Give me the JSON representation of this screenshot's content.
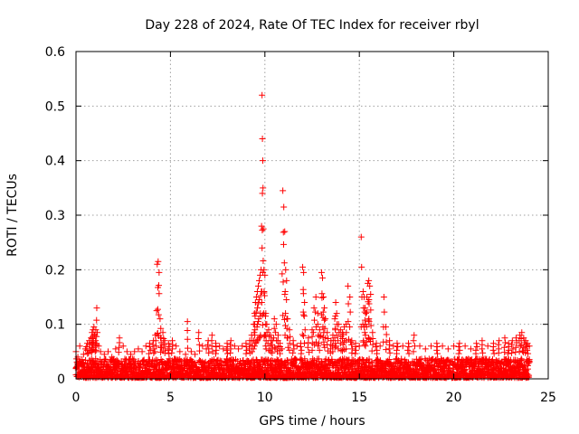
{
  "chart_data": {
    "type": "scatter",
    "title": "Day 228 of 2024, Rate Of TEC Index for receiver rbyl",
    "xlabel": "GPS time / hours",
    "ylabel": "ROTI / TECUs",
    "xlim": [
      0,
      25
    ],
    "ylim": [
      0,
      0.6
    ],
    "xticks": [
      0,
      5,
      10,
      15,
      20,
      25
    ],
    "xtick_labels": [
      "0",
      "5",
      "10",
      "15",
      "20",
      "25"
    ],
    "yticks": [
      0,
      0.1,
      0.2,
      0.3,
      0.4,
      0.5,
      0.6
    ],
    "ytick_labels": [
      "0",
      "0.1",
      "0.2",
      "0.3",
      "0.4",
      "0.5",
      "0.6"
    ],
    "grid": true,
    "marker": "+",
    "color": "#ff0000",
    "series": [
      {
        "name": "ROTI",
        "points": [
          [
            0.0,
            0.05
          ],
          [
            0.1,
            0.04
          ],
          [
            0.2,
            0.06
          ],
          [
            0.3,
            0.03
          ],
          [
            0.4,
            0.045
          ],
          [
            0.5,
            0.055
          ],
          [
            0.6,
            0.065
          ],
          [
            0.7,
            0.07
          ],
          [
            0.8,
            0.075
          ],
          [
            0.85,
            0.085
          ],
          [
            0.9,
            0.09
          ],
          [
            0.95,
            0.095
          ],
          [
            1.0,
            0.08
          ],
          [
            1.05,
            0.09
          ],
          [
            1.1,
            0.13
          ],
          [
            1.2,
            0.06
          ],
          [
            1.3,
            0.05
          ],
          [
            1.5,
            0.045
          ],
          [
            1.7,
            0.05
          ],
          [
            1.9,
            0.04
          ],
          [
            2.1,
            0.055
          ],
          [
            2.3,
            0.075
          ],
          [
            2.5,
            0.06
          ],
          [
            2.7,
            0.05
          ],
          [
            2.9,
            0.045
          ],
          [
            3.1,
            0.05
          ],
          [
            3.3,
            0.055
          ],
          [
            3.5,
            0.05
          ],
          [
            3.7,
            0.06
          ],
          [
            3.9,
            0.065
          ],
          [
            4.1,
            0.07
          ],
          [
            4.2,
            0.08
          ],
          [
            4.3,
            0.21
          ],
          [
            4.35,
            0.215
          ],
          [
            4.4,
            0.195
          ],
          [
            4.45,
            0.11
          ],
          [
            4.5,
            0.075
          ],
          [
            4.6,
            0.085
          ],
          [
            4.7,
            0.07
          ],
          [
            4.9,
            0.065
          ],
          [
            5.1,
            0.07
          ],
          [
            5.3,
            0.06
          ],
          [
            5.5,
            0.05
          ],
          [
            5.8,
            0.045
          ],
          [
            5.9,
            0.105
          ],
          [
            6.1,
            0.05
          ],
          [
            6.3,
            0.045
          ],
          [
            6.5,
            0.085
          ],
          [
            6.7,
            0.06
          ],
          [
            6.9,
            0.055
          ],
          [
            7.0,
            0.07
          ],
          [
            7.2,
            0.08
          ],
          [
            7.4,
            0.065
          ],
          [
            7.6,
            0.06
          ],
          [
            7.8,
            0.055
          ],
          [
            8.0,
            0.065
          ],
          [
            8.2,
            0.07
          ],
          [
            8.4,
            0.06
          ],
          [
            8.6,
            0.055
          ],
          [
            8.8,
            0.06
          ],
          [
            9.0,
            0.065
          ],
          [
            9.2,
            0.07
          ],
          [
            9.3,
            0.08
          ],
          [
            9.4,
            0.1
          ],
          [
            9.45,
            0.12
          ],
          [
            9.5,
            0.14
          ],
          [
            9.55,
            0.15
          ],
          [
            9.6,
            0.16
          ],
          [
            9.65,
            0.17
          ],
          [
            9.7,
            0.18
          ],
          [
            9.75,
            0.19
          ],
          [
            9.8,
            0.2
          ],
          [
            9.85,
            0.52
          ],
          [
            9.87,
            0.44
          ],
          [
            9.9,
            0.35
          ],
          [
            9.92,
            0.275
          ],
          [
            9.95,
            0.2
          ],
          [
            10.0,
            0.19
          ],
          [
            10.05,
            0.12
          ],
          [
            10.1,
            0.1
          ],
          [
            10.2,
            0.09
          ],
          [
            10.3,
            0.08
          ],
          [
            10.4,
            0.07
          ],
          [
            10.5,
            0.11
          ],
          [
            10.6,
            0.1
          ],
          [
            10.7,
            0.08
          ],
          [
            10.8,
            0.065
          ],
          [
            10.9,
            0.055
          ],
          [
            10.95,
            0.345
          ],
          [
            11.0,
            0.315
          ],
          [
            11.05,
            0.27
          ],
          [
            11.1,
            0.2
          ],
          [
            11.15,
            0.18
          ],
          [
            11.2,
            0.11
          ],
          [
            11.3,
            0.09
          ],
          [
            11.5,
            0.07
          ],
          [
            11.7,
            0.06
          ],
          [
            11.9,
            0.065
          ],
          [
            12.0,
            0.205
          ],
          [
            12.05,
            0.195
          ],
          [
            12.1,
            0.14
          ],
          [
            12.3,
            0.075
          ],
          [
            12.5,
            0.09
          ],
          [
            12.6,
            0.13
          ],
          [
            12.7,
            0.15
          ],
          [
            12.8,
            0.12
          ],
          [
            12.9,
            0.09
          ],
          [
            13.0,
            0.195
          ],
          [
            13.05,
            0.185
          ],
          [
            13.1,
            0.15
          ],
          [
            13.15,
            0.13
          ],
          [
            13.2,
            0.11
          ],
          [
            13.3,
            0.085
          ],
          [
            13.5,
            0.07
          ],
          [
            13.6,
            0.08
          ],
          [
            13.7,
            0.11
          ],
          [
            13.75,
            0.14
          ],
          [
            13.8,
            0.12
          ],
          [
            13.9,
            0.1
          ],
          [
            14.0,
            0.09
          ],
          [
            14.1,
            0.085
          ],
          [
            14.2,
            0.095
          ],
          [
            14.3,
            0.1
          ],
          [
            14.4,
            0.17
          ],
          [
            14.5,
            0.15
          ],
          [
            14.6,
            0.07
          ],
          [
            14.8,
            0.065
          ],
          [
            15.0,
            0.06
          ],
          [
            15.1,
            0.26
          ],
          [
            15.2,
            0.16
          ],
          [
            15.25,
            0.15
          ],
          [
            15.3,
            0.13
          ],
          [
            15.35,
            0.12
          ],
          [
            15.4,
            0.15
          ],
          [
            15.45,
            0.175
          ],
          [
            15.5,
            0.18
          ],
          [
            15.55,
            0.17
          ],
          [
            15.6,
            0.155
          ],
          [
            15.7,
            0.085
          ],
          [
            15.9,
            0.065
          ],
          [
            16.1,
            0.06
          ],
          [
            16.3,
            0.15
          ],
          [
            16.4,
            0.095
          ],
          [
            16.6,
            0.07
          ],
          [
            16.8,
            0.06
          ],
          [
            17.0,
            0.065
          ],
          [
            17.3,
            0.06
          ],
          [
            17.6,
            0.065
          ],
          [
            17.9,
            0.08
          ],
          [
            18.2,
            0.06
          ],
          [
            18.5,
            0.055
          ],
          [
            18.8,
            0.06
          ],
          [
            19.1,
            0.065
          ],
          [
            19.4,
            0.06
          ],
          [
            19.7,
            0.055
          ],
          [
            20.0,
            0.06
          ],
          [
            20.3,
            0.065
          ],
          [
            20.6,
            0.06
          ],
          [
            20.9,
            0.055
          ],
          [
            21.2,
            0.065
          ],
          [
            21.5,
            0.07
          ],
          [
            21.8,
            0.06
          ],
          [
            22.1,
            0.065
          ],
          [
            22.4,
            0.07
          ],
          [
            22.7,
            0.075
          ],
          [
            22.9,
            0.065
          ],
          [
            23.1,
            0.07
          ],
          [
            23.3,
            0.075
          ],
          [
            23.5,
            0.08
          ],
          [
            23.6,
            0.085
          ],
          [
            23.7,
            0.075
          ],
          [
            23.8,
            0.07
          ],
          [
            23.9,
            0.065
          ],
          [
            24.0,
            0.06
          ]
        ],
        "baseline": {
          "x_start": 0,
          "x_end": 24,
          "y_floor": 0.002,
          "y_typical": 0.035
        }
      }
    ]
  }
}
